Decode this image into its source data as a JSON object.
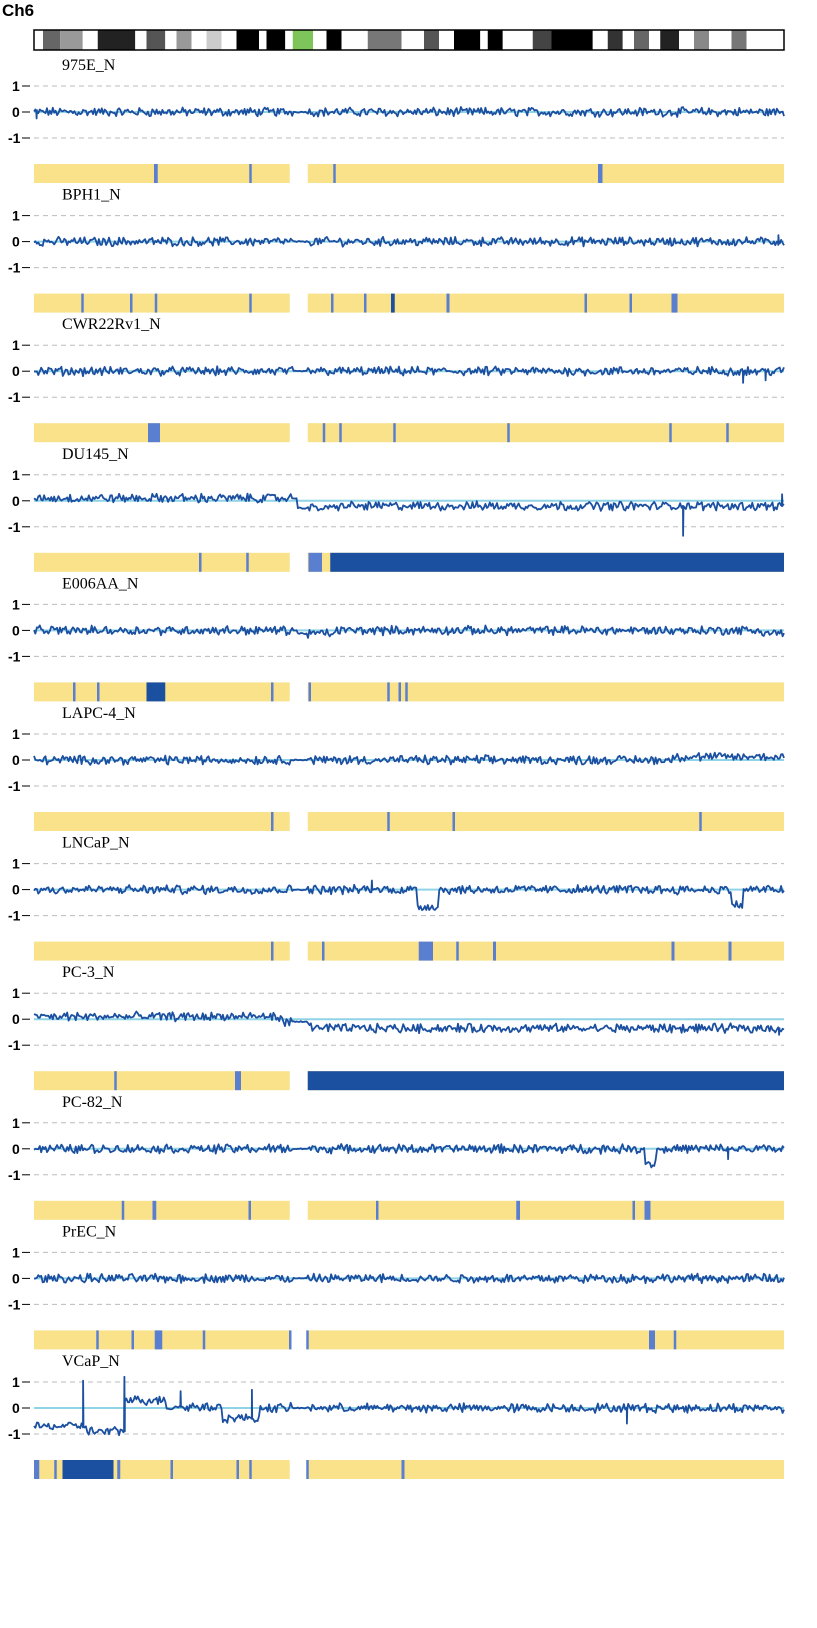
{
  "chart_data": {
    "type": "line",
    "title": "Ch6",
    "y_ticks": [
      "1",
      "0",
      "-1"
    ],
    "ylim": [
      -1.3,
      1.3
    ],
    "x_range": [
      0,
      1
    ],
    "centromere": [
      0.345,
      0.365
    ],
    "grid": true,
    "colors": {
      "trace": "#1b4fa0",
      "baseline": "#8fd3e6",
      "grid": "#bbbbbb",
      "normal_segment": "#f9e28a",
      "loss_segment": "#1b4fa0",
      "partial_loss_segment": "#5a7fd0",
      "ideogram_centromere": "#7dc45a"
    },
    "ideogram": [
      {
        "x0": 0.0,
        "x1": 0.012,
        "shade": "#ffffff"
      },
      {
        "x0": 0.012,
        "x1": 0.035,
        "shade": "#666666"
      },
      {
        "x0": 0.035,
        "x1": 0.065,
        "shade": "#999999"
      },
      {
        "x0": 0.065,
        "x1": 0.085,
        "shade": "#ffffff"
      },
      {
        "x0": 0.085,
        "x1": 0.135,
        "shade": "#222222"
      },
      {
        "x0": 0.135,
        "x1": 0.15,
        "shade": "#ffffff"
      },
      {
        "x0": 0.15,
        "x1": 0.175,
        "shade": "#555555"
      },
      {
        "x0": 0.175,
        "x1": 0.19,
        "shade": "#ffffff"
      },
      {
        "x0": 0.19,
        "x1": 0.21,
        "shade": "#999999"
      },
      {
        "x0": 0.21,
        "x1": 0.23,
        "shade": "#ffffff"
      },
      {
        "x0": 0.23,
        "x1": 0.25,
        "shade": "#cccccc"
      },
      {
        "x0": 0.25,
        "x1": 0.27,
        "shade": "#ffffff"
      },
      {
        "x0": 0.27,
        "x1": 0.3,
        "shade": "#000000"
      },
      {
        "x0": 0.3,
        "x1": 0.31,
        "shade": "#ffffff"
      },
      {
        "x0": 0.31,
        "x1": 0.335,
        "shade": "#000000"
      },
      {
        "x0": 0.335,
        "x1": 0.345,
        "shade": "#ffffff"
      },
      {
        "x0": 0.345,
        "x1": 0.372,
        "shade": "#7dc45a"
      },
      {
        "x0": 0.372,
        "x1": 0.39,
        "shade": "#ffffff"
      },
      {
        "x0": 0.39,
        "x1": 0.41,
        "shade": "#000000"
      },
      {
        "x0": 0.41,
        "x1": 0.445,
        "shade": "#ffffff"
      },
      {
        "x0": 0.445,
        "x1": 0.49,
        "shade": "#777777"
      },
      {
        "x0": 0.49,
        "x1": 0.52,
        "shade": "#ffffff"
      },
      {
        "x0": 0.52,
        "x1": 0.54,
        "shade": "#555555"
      },
      {
        "x0": 0.54,
        "x1": 0.56,
        "shade": "#ffffff"
      },
      {
        "x0": 0.56,
        "x1": 0.595,
        "shade": "#000000"
      },
      {
        "x0": 0.595,
        "x1": 0.605,
        "shade": "#ffffff"
      },
      {
        "x0": 0.605,
        "x1": 0.625,
        "shade": "#000000"
      },
      {
        "x0": 0.625,
        "x1": 0.665,
        "shade": "#ffffff"
      },
      {
        "x0": 0.665,
        "x1": 0.69,
        "shade": "#444444"
      },
      {
        "x0": 0.69,
        "x1": 0.745,
        "shade": "#000000"
      },
      {
        "x0": 0.745,
        "x1": 0.765,
        "shade": "#ffffff"
      },
      {
        "x0": 0.765,
        "x1": 0.785,
        "shade": "#333333"
      },
      {
        "x0": 0.785,
        "x1": 0.8,
        "shade": "#ffffff"
      },
      {
        "x0": 0.8,
        "x1": 0.82,
        "shade": "#666666"
      },
      {
        "x0": 0.82,
        "x1": 0.835,
        "shade": "#ffffff"
      },
      {
        "x0": 0.835,
        "x1": 0.86,
        "shade": "#222222"
      },
      {
        "x0": 0.86,
        "x1": 0.88,
        "shade": "#ffffff"
      },
      {
        "x0": 0.88,
        "x1": 0.9,
        "shade": "#888888"
      },
      {
        "x0": 0.9,
        "x1": 0.93,
        "shade": "#ffffff"
      },
      {
        "x0": 0.93,
        "x1": 0.95,
        "shade": "#777777"
      },
      {
        "x0": 0.95,
        "x1": 1.0,
        "shade": "#ffffff"
      }
    ],
    "series": [
      {
        "name": "975E_N",
        "steps": [
          [
            0,
            1,
            0
          ]
        ],
        "spikes": [
          [
            0.003,
            -0.25
          ]
        ],
        "segments": [
          {
            "x0": 0.16,
            "x1": 0.165,
            "state": "partial"
          },
          {
            "x0": 0.287,
            "x1": 0.29,
            "state": "partial"
          },
          {
            "x0": 0.399,
            "x1": 0.402,
            "state": "partial"
          },
          {
            "x0": 0.752,
            "x1": 0.758,
            "state": "partial"
          }
        ]
      },
      {
        "name": "BPH1_N",
        "steps": [
          [
            0,
            1,
            0
          ]
        ],
        "spikes": [
          [
            0.992,
            0.25
          ]
        ],
        "segments": [
          {
            "x0": 0.063,
            "x1": 0.066,
            "state": "partial"
          },
          {
            "x0": 0.128,
            "x1": 0.131,
            "state": "partial"
          },
          {
            "x0": 0.161,
            "x1": 0.164,
            "state": "partial"
          },
          {
            "x0": 0.287,
            "x1": 0.29,
            "state": "partial"
          },
          {
            "x0": 0.396,
            "x1": 0.399,
            "state": "partial"
          },
          {
            "x0": 0.44,
            "x1": 0.443,
            "state": "partial"
          },
          {
            "x0": 0.476,
            "x1": 0.481,
            "state": "loss"
          },
          {
            "x0": 0.55,
            "x1": 0.554,
            "state": "partial"
          },
          {
            "x0": 0.734,
            "x1": 0.737,
            "state": "partial"
          },
          {
            "x0": 0.794,
            "x1": 0.797,
            "state": "partial"
          },
          {
            "x0": 0.85,
            "x1": 0.858,
            "state": "partial"
          }
        ]
      },
      {
        "name": "CWR22Rv1_N",
        "steps": [
          [
            0,
            1,
            0
          ]
        ],
        "spikes": [
          [
            0.945,
            -0.45
          ],
          [
            0.975,
            -0.35
          ]
        ],
        "segments": [
          {
            "x0": 0.152,
            "x1": 0.168,
            "state": "partial"
          },
          {
            "x0": 0.385,
            "x1": 0.388,
            "state": "partial"
          },
          {
            "x0": 0.407,
            "x1": 0.41,
            "state": "partial"
          },
          {
            "x0": 0.479,
            "x1": 0.482,
            "state": "partial"
          },
          {
            "x0": 0.631,
            "x1": 0.634,
            "state": "partial"
          },
          {
            "x0": 0.847,
            "x1": 0.85,
            "state": "partial"
          },
          {
            "x0": 0.923,
            "x1": 0.926,
            "state": "partial"
          }
        ]
      },
      {
        "name": "DU145_N",
        "steps": [
          [
            0,
            0.35,
            0.1
          ],
          [
            0.35,
            0.4,
            -0.28
          ],
          [
            0.4,
            1,
            -0.2
          ]
        ],
        "spikes": [
          [
            0.865,
            -1.35
          ],
          [
            0.997,
            0.25
          ]
        ],
        "segments": [
          {
            "x0": 0.22,
            "x1": 0.223,
            "state": "partial"
          },
          {
            "x0": 0.283,
            "x1": 0.286,
            "state": "partial"
          },
          {
            "x0": 0.366,
            "x1": 0.384,
            "state": "partial"
          },
          {
            "x0": 0.395,
            "x1": 1.0,
            "state": "loss"
          }
        ]
      },
      {
        "name": "E006AA_N",
        "steps": [
          [
            0,
            0.35,
            0
          ],
          [
            0.35,
            0.4,
            -0.12
          ],
          [
            0.4,
            0.97,
            0
          ],
          [
            0.97,
            1,
            -0.1
          ]
        ],
        "spikes": [],
        "segments": [
          {
            "x0": 0.052,
            "x1": 0.055,
            "state": "partial"
          },
          {
            "x0": 0.084,
            "x1": 0.087,
            "state": "partial"
          },
          {
            "x0": 0.15,
            "x1": 0.175,
            "state": "loss"
          },
          {
            "x0": 0.316,
            "x1": 0.319,
            "state": "partial"
          },
          {
            "x0": 0.366,
            "x1": 0.369,
            "state": "partial"
          },
          {
            "x0": 0.471,
            "x1": 0.474,
            "state": "partial"
          },
          {
            "x0": 0.486,
            "x1": 0.489,
            "state": "partial"
          },
          {
            "x0": 0.495,
            "x1": 0.498,
            "state": "partial"
          }
        ]
      },
      {
        "name": "LAPC-4_N",
        "steps": [
          [
            0,
            0.85,
            0
          ],
          [
            0.85,
            1,
            0.12
          ]
        ],
        "spikes": [],
        "segments": [
          {
            "x0": 0.316,
            "x1": 0.319,
            "state": "partial"
          },
          {
            "x0": 0.471,
            "x1": 0.474,
            "state": "partial"
          },
          {
            "x0": 0.558,
            "x1": 0.561,
            "state": "partial"
          },
          {
            "x0": 0.887,
            "x1": 0.89,
            "state": "partial"
          }
        ]
      },
      {
        "name": "LNCaP_N",
        "steps": [
          [
            0,
            0.51,
            0
          ],
          [
            0.51,
            0.54,
            -0.65
          ],
          [
            0.54,
            0.93,
            0
          ],
          [
            0.93,
            0.945,
            -0.6
          ],
          [
            0.945,
            1,
            0
          ]
        ],
        "spikes": [
          [
            0.45,
            0.35
          ]
        ],
        "segments": [
          {
            "x0": 0.316,
            "x1": 0.319,
            "state": "partial"
          },
          {
            "x0": 0.384,
            "x1": 0.387,
            "state": "partial"
          },
          {
            "x0": 0.513,
            "x1": 0.532,
            "state": "partial"
          },
          {
            "x0": 0.563,
            "x1": 0.566,
            "state": "partial"
          },
          {
            "x0": 0.612,
            "x1": 0.616,
            "state": "partial"
          },
          {
            "x0": 0.85,
            "x1": 0.854,
            "state": "partial"
          },
          {
            "x0": 0.926,
            "x1": 0.93,
            "state": "partial"
          }
        ]
      },
      {
        "name": "PC-3_N",
        "steps": [
          [
            0,
            0.33,
            0.1
          ],
          [
            0.33,
            0.37,
            -0.1
          ],
          [
            0.37,
            1,
            -0.35
          ]
        ],
        "spikes": [
          [
            0.993,
            -0.6
          ]
        ],
        "segments": [
          {
            "x0": 0.107,
            "x1": 0.11,
            "state": "partial"
          },
          {
            "x0": 0.268,
            "x1": 0.276,
            "state": "partial"
          },
          {
            "x0": 0.365,
            "x1": 1.0,
            "state": "loss"
          }
        ]
      },
      {
        "name": "PC-82_N",
        "steps": [
          [
            0,
            0.815,
            0
          ],
          [
            0.815,
            0.83,
            -0.55
          ],
          [
            0.83,
            1,
            0
          ]
        ],
        "spikes": [
          [
            0.925,
            -0.4
          ]
        ],
        "segments": [
          {
            "x0": 0.117,
            "x1": 0.12,
            "state": "partial"
          },
          {
            "x0": 0.158,
            "x1": 0.163,
            "state": "partial"
          },
          {
            "x0": 0.286,
            "x1": 0.289,
            "state": "partial"
          },
          {
            "x0": 0.456,
            "x1": 0.459,
            "state": "partial"
          },
          {
            "x0": 0.643,
            "x1": 0.648,
            "state": "partial"
          },
          {
            "x0": 0.798,
            "x1": 0.801,
            "state": "partial"
          },
          {
            "x0": 0.814,
            "x1": 0.822,
            "state": "partial"
          }
        ]
      },
      {
        "name": "PrEC_N",
        "steps": [
          [
            0,
            1,
            0
          ]
        ],
        "spikes": [],
        "segments": [
          {
            "x0": 0.083,
            "x1": 0.086,
            "state": "partial"
          },
          {
            "x0": 0.13,
            "x1": 0.133,
            "state": "partial"
          },
          {
            "x0": 0.161,
            "x1": 0.171,
            "state": "partial"
          },
          {
            "x0": 0.225,
            "x1": 0.228,
            "state": "partial"
          },
          {
            "x0": 0.34,
            "x1": 0.343,
            "state": "partial"
          },
          {
            "x0": 0.363,
            "x1": 0.366,
            "state": "partial"
          },
          {
            "x0": 0.82,
            "x1": 0.828,
            "state": "partial"
          },
          {
            "x0": 0.853,
            "x1": 0.856,
            "state": "partial"
          }
        ]
      },
      {
        "name": "VCaP_N",
        "steps": [
          [
            0,
            0.07,
            -0.7
          ],
          [
            0.07,
            0.12,
            -0.9
          ],
          [
            0.12,
            0.175,
            0.3
          ],
          [
            0.175,
            0.25,
            0.05
          ],
          [
            0.25,
            0.3,
            -0.4
          ],
          [
            0.3,
            1,
            0
          ]
        ],
        "spikes": [
          [
            0.065,
            1.05
          ],
          [
            0.12,
            1.2
          ],
          [
            0.195,
            0.65
          ],
          [
            0.29,
            0.7
          ],
          [
            0.79,
            -0.6
          ]
        ],
        "segments": [
          {
            "x0": 0.0,
            "x1": 0.007,
            "state": "partial"
          },
          {
            "x0": 0.027,
            "x1": 0.03,
            "state": "partial"
          },
          {
            "x0": 0.038,
            "x1": 0.106,
            "state": "loss"
          },
          {
            "x0": 0.111,
            "x1": 0.115,
            "state": "partial"
          },
          {
            "x0": 0.182,
            "x1": 0.185,
            "state": "partial"
          },
          {
            "x0": 0.27,
            "x1": 0.273,
            "state": "partial"
          },
          {
            "x0": 0.287,
            "x1": 0.29,
            "state": "partial"
          },
          {
            "x0": 0.363,
            "x1": 0.366,
            "state": "partial"
          },
          {
            "x0": 0.49,
            "x1": 0.494,
            "state": "partial"
          }
        ]
      }
    ]
  }
}
